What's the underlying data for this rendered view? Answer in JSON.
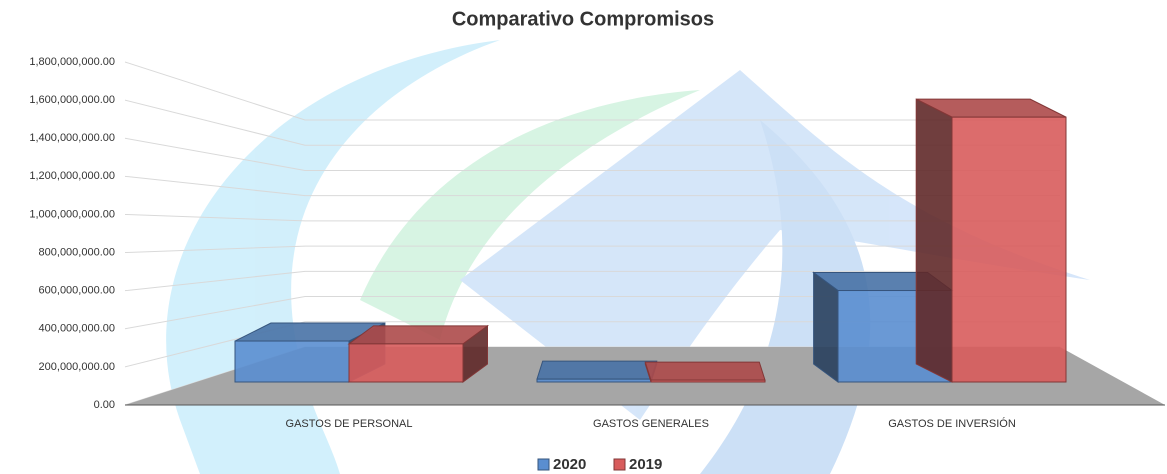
{
  "chart_data": {
    "type": "bar3d",
    "title": "Comparativo Compromisos",
    "categories": [
      "GASTOS DE PERSONAL",
      "GASTOS GENERALES",
      "GASTOS DE INVERSIÓN"
    ],
    "series": [
      {
        "name": "2020",
        "color": "#5a8ed0",
        "values": [
          215000000,
          15000000,
          480000000
        ]
      },
      {
        "name": "2019",
        "color": "#d85c5c",
        "values": [
          200000000,
          10000000,
          1390000000
        ]
      }
    ],
    "ylim": [
      0,
      1800000000
    ],
    "yticks": [
      {
        "value": 0,
        "label": "0.00"
      },
      {
        "value": 200000000,
        "label": "200,000,000.00"
      },
      {
        "value": 400000000,
        "label": "400,000,000.00"
      },
      {
        "value": 600000000,
        "label": "600,000,000.00"
      },
      {
        "value": 800000000,
        "label": "800,000,000.00"
      },
      {
        "value": 1000000000,
        "label": "1,000,000,000.00"
      },
      {
        "value": 1200000000,
        "label": "1,200,000,000.00"
      },
      {
        "value": 1400000000,
        "label": "1,400,000,000.00"
      },
      {
        "value": 1600000000,
        "label": "1,600,000,000.00"
      },
      {
        "value": 1800000000,
        "label": "1,800,000,000.00"
      }
    ],
    "grid": true,
    "legend": "bottom"
  }
}
